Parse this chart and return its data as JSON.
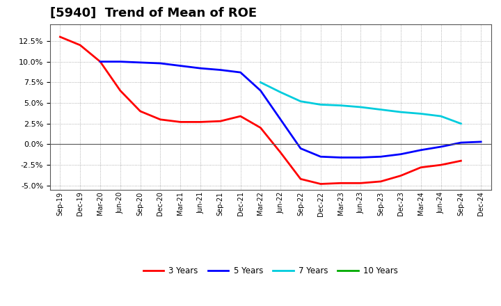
{
  "title": "[5940]  Trend of Mean of ROE",
  "x_labels": [
    "Sep-19",
    "Dec-19",
    "Mar-20",
    "Jun-20",
    "Sep-20",
    "Dec-20",
    "Mar-21",
    "Jun-21",
    "Sep-21",
    "Dec-21",
    "Mar-22",
    "Jun-22",
    "Sep-22",
    "Dec-22",
    "Mar-23",
    "Jun-23",
    "Sep-23",
    "Dec-23",
    "Mar-24",
    "Jun-24",
    "Sep-24",
    "Dec-24"
  ],
  "series": {
    "3 Years": {
      "color": "#ff0000",
      "values": [
        0.13,
        0.12,
        0.1,
        0.065,
        0.04,
        0.03,
        0.027,
        0.027,
        0.028,
        0.034,
        0.02,
        -0.01,
        -0.042,
        -0.048,
        -0.047,
        -0.047,
        -0.045,
        -0.038,
        -0.028,
        -0.025,
        -0.02,
        null
      ]
    },
    "5 Years": {
      "color": "#0000ff",
      "values": [
        null,
        null,
        0.1,
        0.1,
        0.099,
        0.098,
        0.095,
        0.092,
        0.09,
        0.087,
        0.065,
        0.03,
        -0.005,
        -0.015,
        -0.016,
        -0.016,
        -0.015,
        -0.012,
        -0.007,
        -0.003,
        0.002,
        0.003
      ]
    },
    "7 Years": {
      "color": "#00ccdd",
      "values": [
        null,
        null,
        null,
        null,
        null,
        null,
        null,
        null,
        null,
        null,
        0.075,
        0.063,
        0.052,
        0.048,
        0.047,
        0.045,
        0.042,
        0.039,
        0.037,
        0.034,
        0.025,
        null
      ]
    },
    "10 Years": {
      "color": "#00aa00",
      "values": [
        null,
        null,
        null,
        null,
        null,
        null,
        null,
        null,
        null,
        null,
        null,
        null,
        null,
        null,
        null,
        null,
        null,
        null,
        null,
        null,
        null,
        null
      ]
    }
  },
  "ylim": [
    -0.055,
    0.145
  ],
  "yticks": [
    -0.05,
    -0.025,
    0.0,
    0.025,
    0.05,
    0.075,
    0.1,
    0.125
  ],
  "background_color": "#ffffff",
  "grid_color": "#aaaaaa",
  "title_fontsize": 13,
  "legend_colors": [
    "#ff0000",
    "#0000ff",
    "#00ccdd",
    "#00aa00"
  ],
  "legend_labels": [
    "3 Years",
    "5 Years",
    "7 Years",
    "10 Years"
  ]
}
